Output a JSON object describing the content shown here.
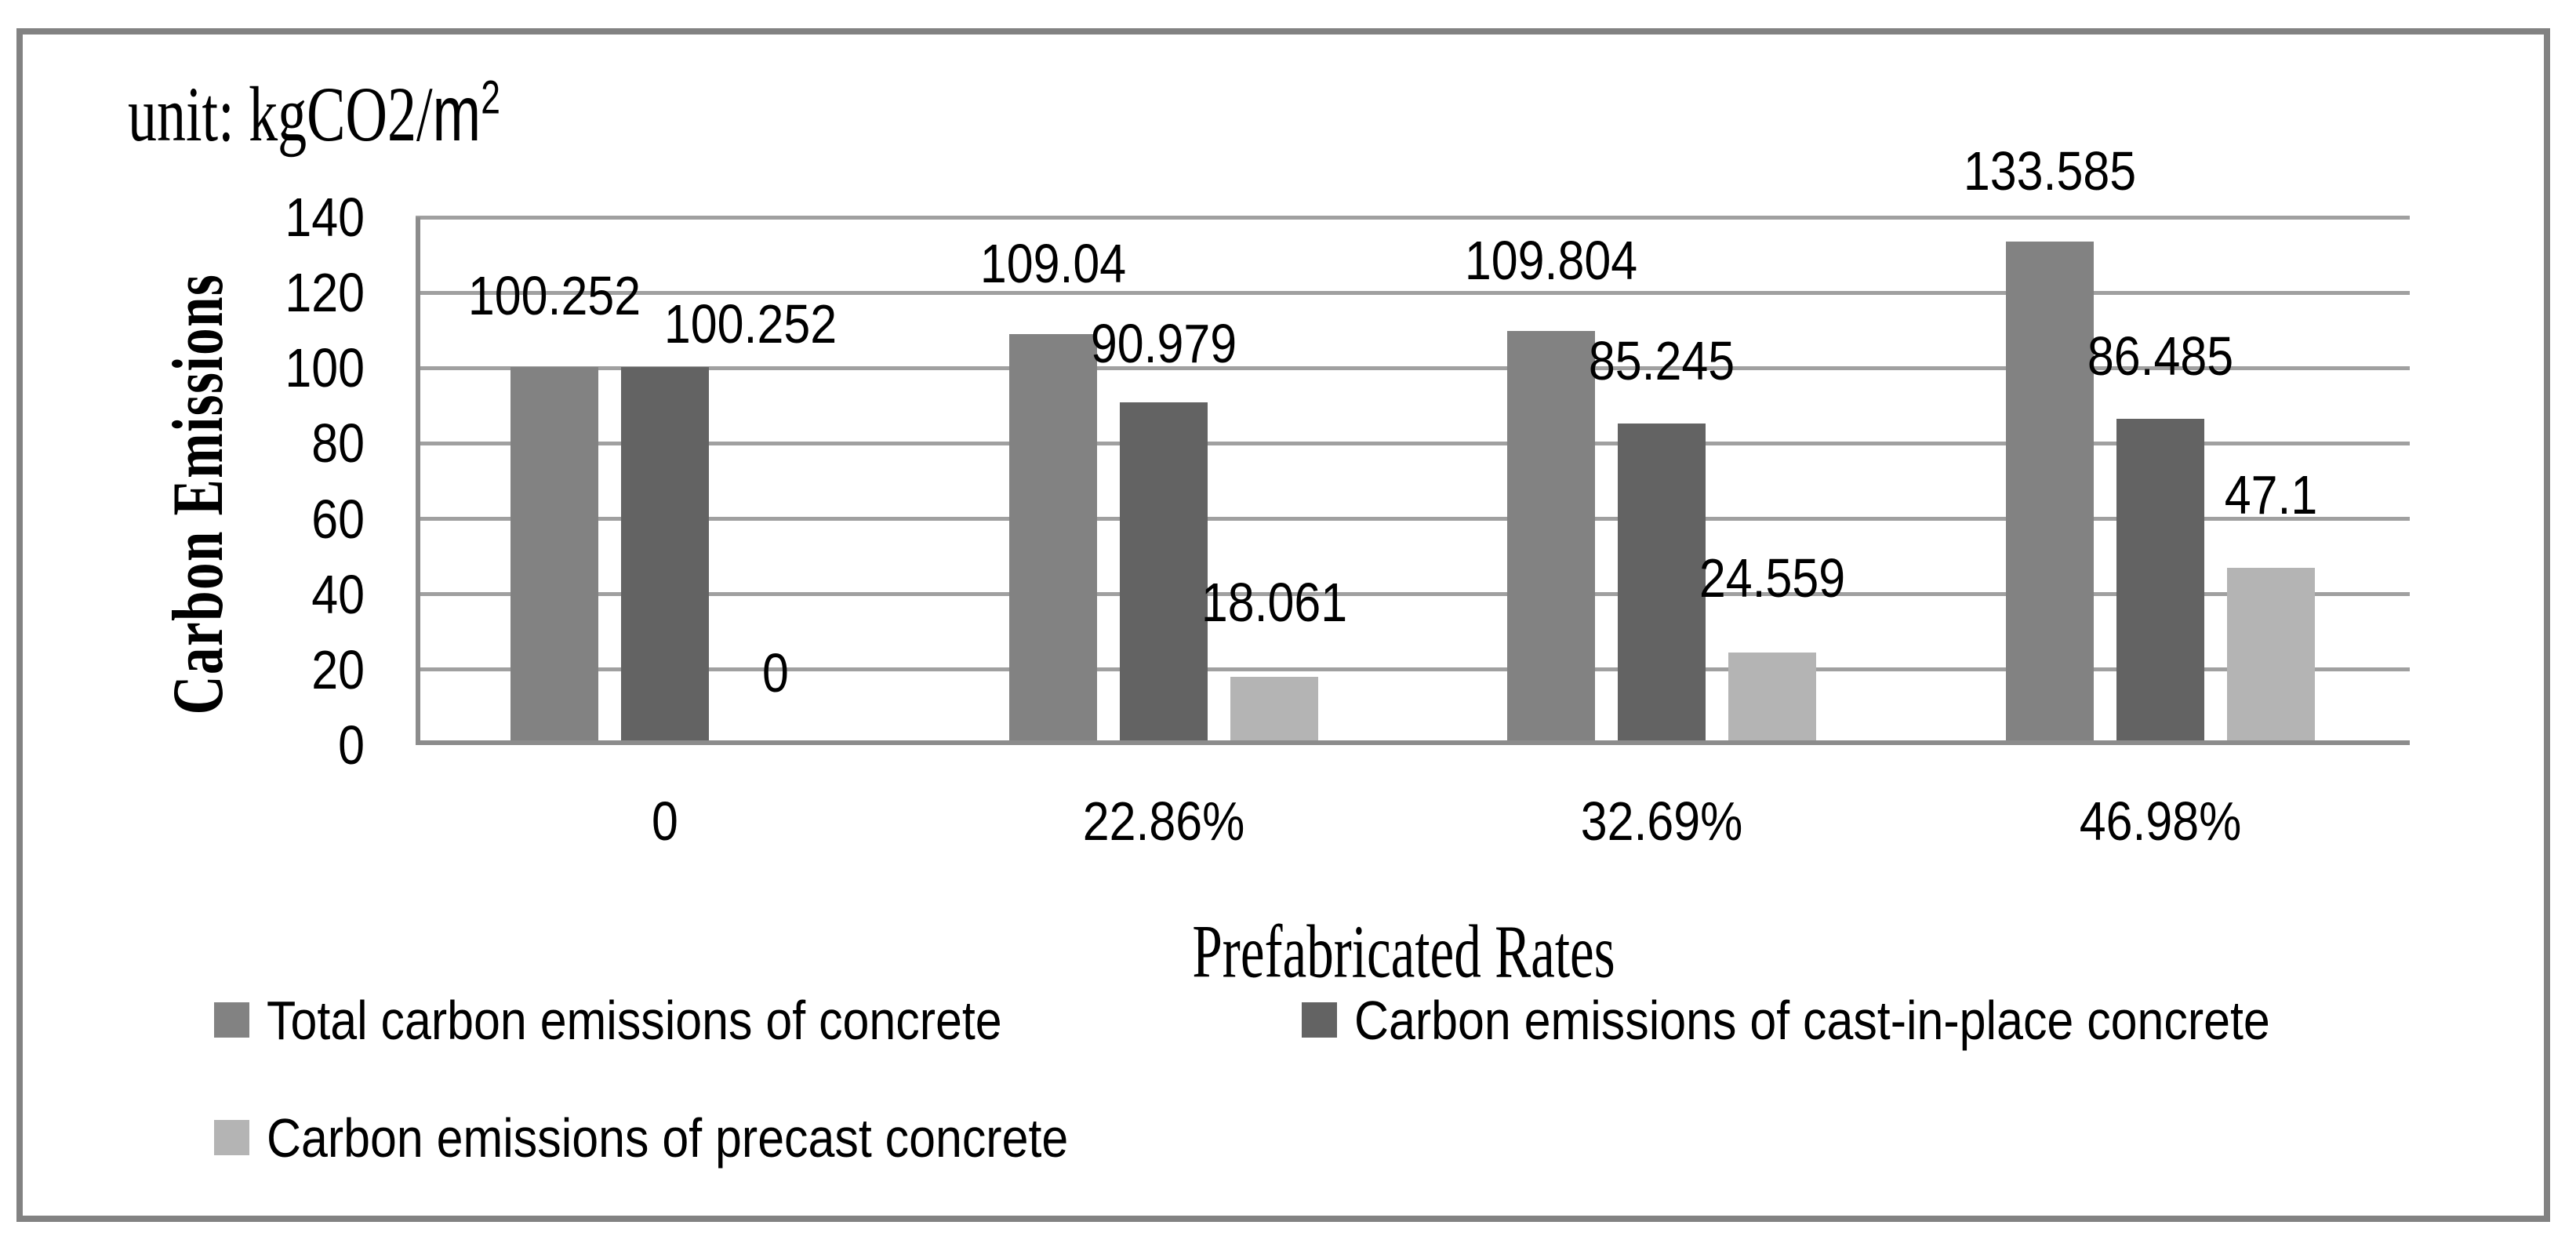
{
  "unit_label": {
    "prefix": "unit: kgCO2/",
    "base": "m",
    "superscript": "2"
  },
  "chart_data": {
    "type": "bar",
    "title": "",
    "xlabel": "Prefabricated Rates",
    "ylabel": "Carbon Emissions",
    "unit_text": "unit: kgCO2/m²",
    "categories": [
      "0",
      "22.86%",
      "32.69%",
      "46.98%"
    ],
    "series": [
      {
        "name": "Total carbon emissions of concrete",
        "color": "#828282",
        "values": [
          100.252,
          109.04,
          109.804,
          133.585
        ],
        "labels": [
          "100.252",
          "109.04",
          "109.804",
          "133.585"
        ]
      },
      {
        "name": "Carbon emissions of cast-in-place concrete",
        "color": "#636363",
        "values": [
          100.252,
          90.979,
          85.245,
          86.485
        ],
        "labels": [
          "100.252",
          "90.979",
          "85.245",
          "86.485"
        ]
      },
      {
        "name": "Carbon emissions of precast concrete",
        "color": "#b4b4b4",
        "values": [
          0,
          18.061,
          24.559,
          47.1
        ],
        "labels": [
          "0",
          "18.061",
          "24.559",
          "47.1"
        ]
      }
    ],
    "y_ticks": [
      0,
      20,
      40,
      60,
      80,
      100,
      120,
      140
    ],
    "ylim": [
      0,
      140
    ],
    "grid": true,
    "legend_position": "bottom"
  },
  "colors": {
    "gridline": "#a0a0a0",
    "axis": "#8c8c8c",
    "frame": "#828282",
    "text": "#000000",
    "background": "#ffffff"
  }
}
